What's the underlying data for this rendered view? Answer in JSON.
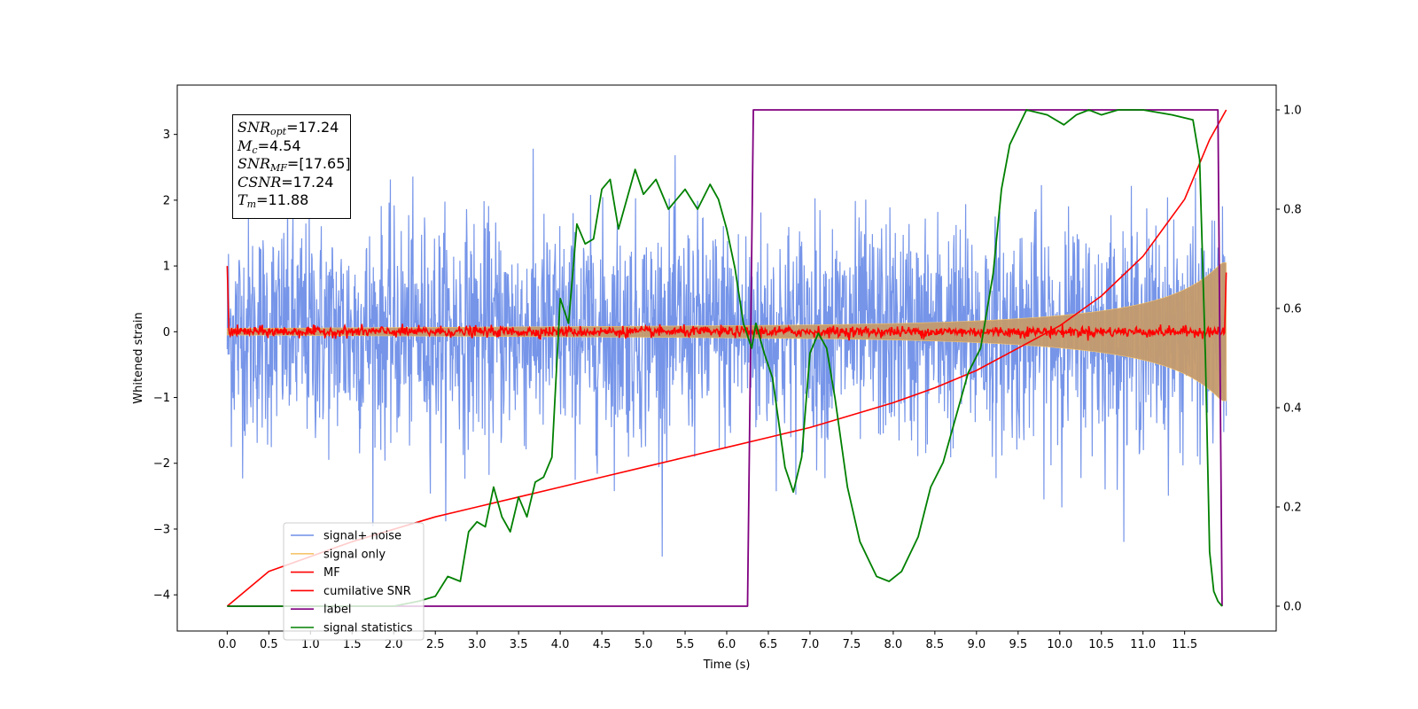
{
  "chart_data": {
    "type": "line",
    "xlabel": "Time (s)",
    "ylabel": "Whitened strain",
    "ylabel_right": "",
    "xlim": [
      -0.6,
      12.6
    ],
    "ylim": [
      -4.55,
      3.75
    ],
    "ylim_right": [
      -0.05,
      1.05
    ],
    "x_ticks": [
      "0.0",
      "0.5",
      "1.0",
      "1.5",
      "2.0",
      "2.5",
      "3.0",
      "3.5",
      "4.0",
      "4.5",
      "5.0",
      "5.5",
      "6.0",
      "6.5",
      "7.0",
      "7.5",
      "8.0",
      "8.5",
      "9.0",
      "9.5",
      "10.0",
      "10.5",
      "11.0",
      "11.5"
    ],
    "y_ticks": [
      "3",
      "2",
      "1",
      "0",
      "−1",
      "−2",
      "−3",
      "−4"
    ],
    "y_ticks_right": [
      "1.0",
      "0.8",
      "0.6",
      "0.4",
      "0.2",
      "0.0"
    ],
    "grid": false,
    "legend_position": "lower-left",
    "series": [
      {
        "name": "signal+ noise",
        "color": "#6f8fe8",
        "axis": "left",
        "kind": "noise",
        "x_range": [
          0.0,
          12.0
        ],
        "std": 0.85,
        "min": -4.15,
        "max": 3.55
      },
      {
        "name": "signal only",
        "color": "#f6c56c",
        "axis": "left",
        "kind": "chirp",
        "x_range": [
          0.0,
          12.0
        ],
        "amplitude_start": 0.05,
        "amplitude_end": 1.05
      },
      {
        "name": "MF",
        "color": "#ff0000",
        "axis": "left",
        "kind": "noise-small",
        "x_range": [
          0.0,
          12.0
        ],
        "std": 0.04,
        "start_value": 1.0,
        "end_value": 0.9
      },
      {
        "name": "cumilative SNR",
        "color": "#ff0000",
        "axis": "right",
        "x": [
          0.0,
          0.5,
          1.0,
          1.5,
          2.0,
          2.5,
          3.0,
          3.5,
          4.0,
          4.5,
          5.0,
          5.5,
          6.0,
          6.5,
          7.0,
          7.5,
          8.0,
          8.5,
          9.0,
          9.5,
          10.0,
          10.5,
          11.0,
          11.5,
          11.8,
          12.0
        ],
        "y": [
          0.0,
          0.07,
          0.1,
          0.13,
          0.155,
          0.18,
          0.2,
          0.22,
          0.24,
          0.26,
          0.28,
          0.3,
          0.32,
          0.34,
          0.36,
          0.385,
          0.41,
          0.44,
          0.475,
          0.52,
          0.565,
          0.625,
          0.705,
          0.82,
          0.94,
          1.0
        ]
      },
      {
        "name": "label",
        "color": "#800080",
        "axis": "right",
        "x": [
          0.0,
          6.25,
          6.32,
          11.9,
          11.95
        ],
        "y": [
          0.0,
          0.0,
          1.0,
          1.0,
          0.0
        ]
      },
      {
        "name": "signal statistics",
        "color": "#008000",
        "axis": "right",
        "x": [
          0.0,
          2.0,
          2.3,
          2.5,
          2.65,
          2.8,
          2.9,
          3.0,
          3.1,
          3.2,
          3.3,
          3.4,
          3.5,
          3.6,
          3.7,
          3.8,
          3.9,
          4.0,
          4.1,
          4.2,
          4.3,
          4.4,
          4.5,
          4.6,
          4.7,
          4.9,
          5.0,
          5.15,
          5.3,
          5.5,
          5.65,
          5.8,
          5.9,
          6.0,
          6.1,
          6.2,
          6.3,
          6.35,
          6.45,
          6.55,
          6.7,
          6.8,
          6.9,
          7.0,
          7.1,
          7.2,
          7.3,
          7.45,
          7.6,
          7.8,
          7.95,
          8.1,
          8.3,
          8.45,
          8.6,
          8.75,
          8.9,
          9.05,
          9.2,
          9.3,
          9.4,
          9.6,
          9.85,
          10.05,
          10.2,
          10.35,
          10.5,
          10.7,
          11.0,
          11.35,
          11.6,
          11.68,
          11.75,
          11.8,
          11.85,
          11.9,
          11.95
        ],
        "y": [
          0.0,
          0.0,
          0.01,
          0.02,
          0.06,
          0.05,
          0.15,
          0.17,
          0.16,
          0.24,
          0.18,
          0.15,
          0.22,
          0.18,
          0.25,
          0.26,
          0.3,
          0.62,
          0.57,
          0.77,
          0.73,
          0.74,
          0.84,
          0.86,
          0.76,
          0.88,
          0.83,
          0.86,
          0.8,
          0.84,
          0.8,
          0.85,
          0.82,
          0.76,
          0.68,
          0.57,
          0.52,
          0.57,
          0.51,
          0.46,
          0.28,
          0.23,
          0.3,
          0.51,
          0.55,
          0.52,
          0.42,
          0.24,
          0.13,
          0.06,
          0.05,
          0.07,
          0.14,
          0.24,
          0.29,
          0.38,
          0.47,
          0.52,
          0.67,
          0.84,
          0.93,
          1.0,
          0.99,
          0.97,
          0.99,
          1.0,
          0.99,
          1.0,
          1.0,
          0.99,
          0.98,
          0.9,
          0.5,
          0.11,
          0.03,
          0.01,
          0.0
        ]
      }
    ]
  },
  "legend": {
    "items": [
      {
        "label": "signal+ noise",
        "color": "#6f8fe8"
      },
      {
        "label": "signal only",
        "color": "#f6c56c"
      },
      {
        "label": "MF",
        "color": "#ff0000"
      },
      {
        "label": "cumilative SNR",
        "color": "#ff0000"
      },
      {
        "label": "label",
        "color": "#800080"
      },
      {
        "label": "signal statistics",
        "color": "#008000"
      }
    ]
  },
  "stats_box": {
    "snr_opt_symbol": "SNR",
    "snr_opt_sub": "opt",
    "snr_opt_value": "=17.24",
    "mc_symbol": "M",
    "mc_sub": "c",
    "mc_value": "=4.54",
    "snr_mf_symbol": "SNR",
    "snr_mf_sub": "MF",
    "snr_mf_value": "=[17.65]",
    "csnr_symbol": "CSNR",
    "csnr_value": "=17.24",
    "tm_symbol": "T",
    "tm_sub": "m",
    "tm_value": "=11.88"
  }
}
